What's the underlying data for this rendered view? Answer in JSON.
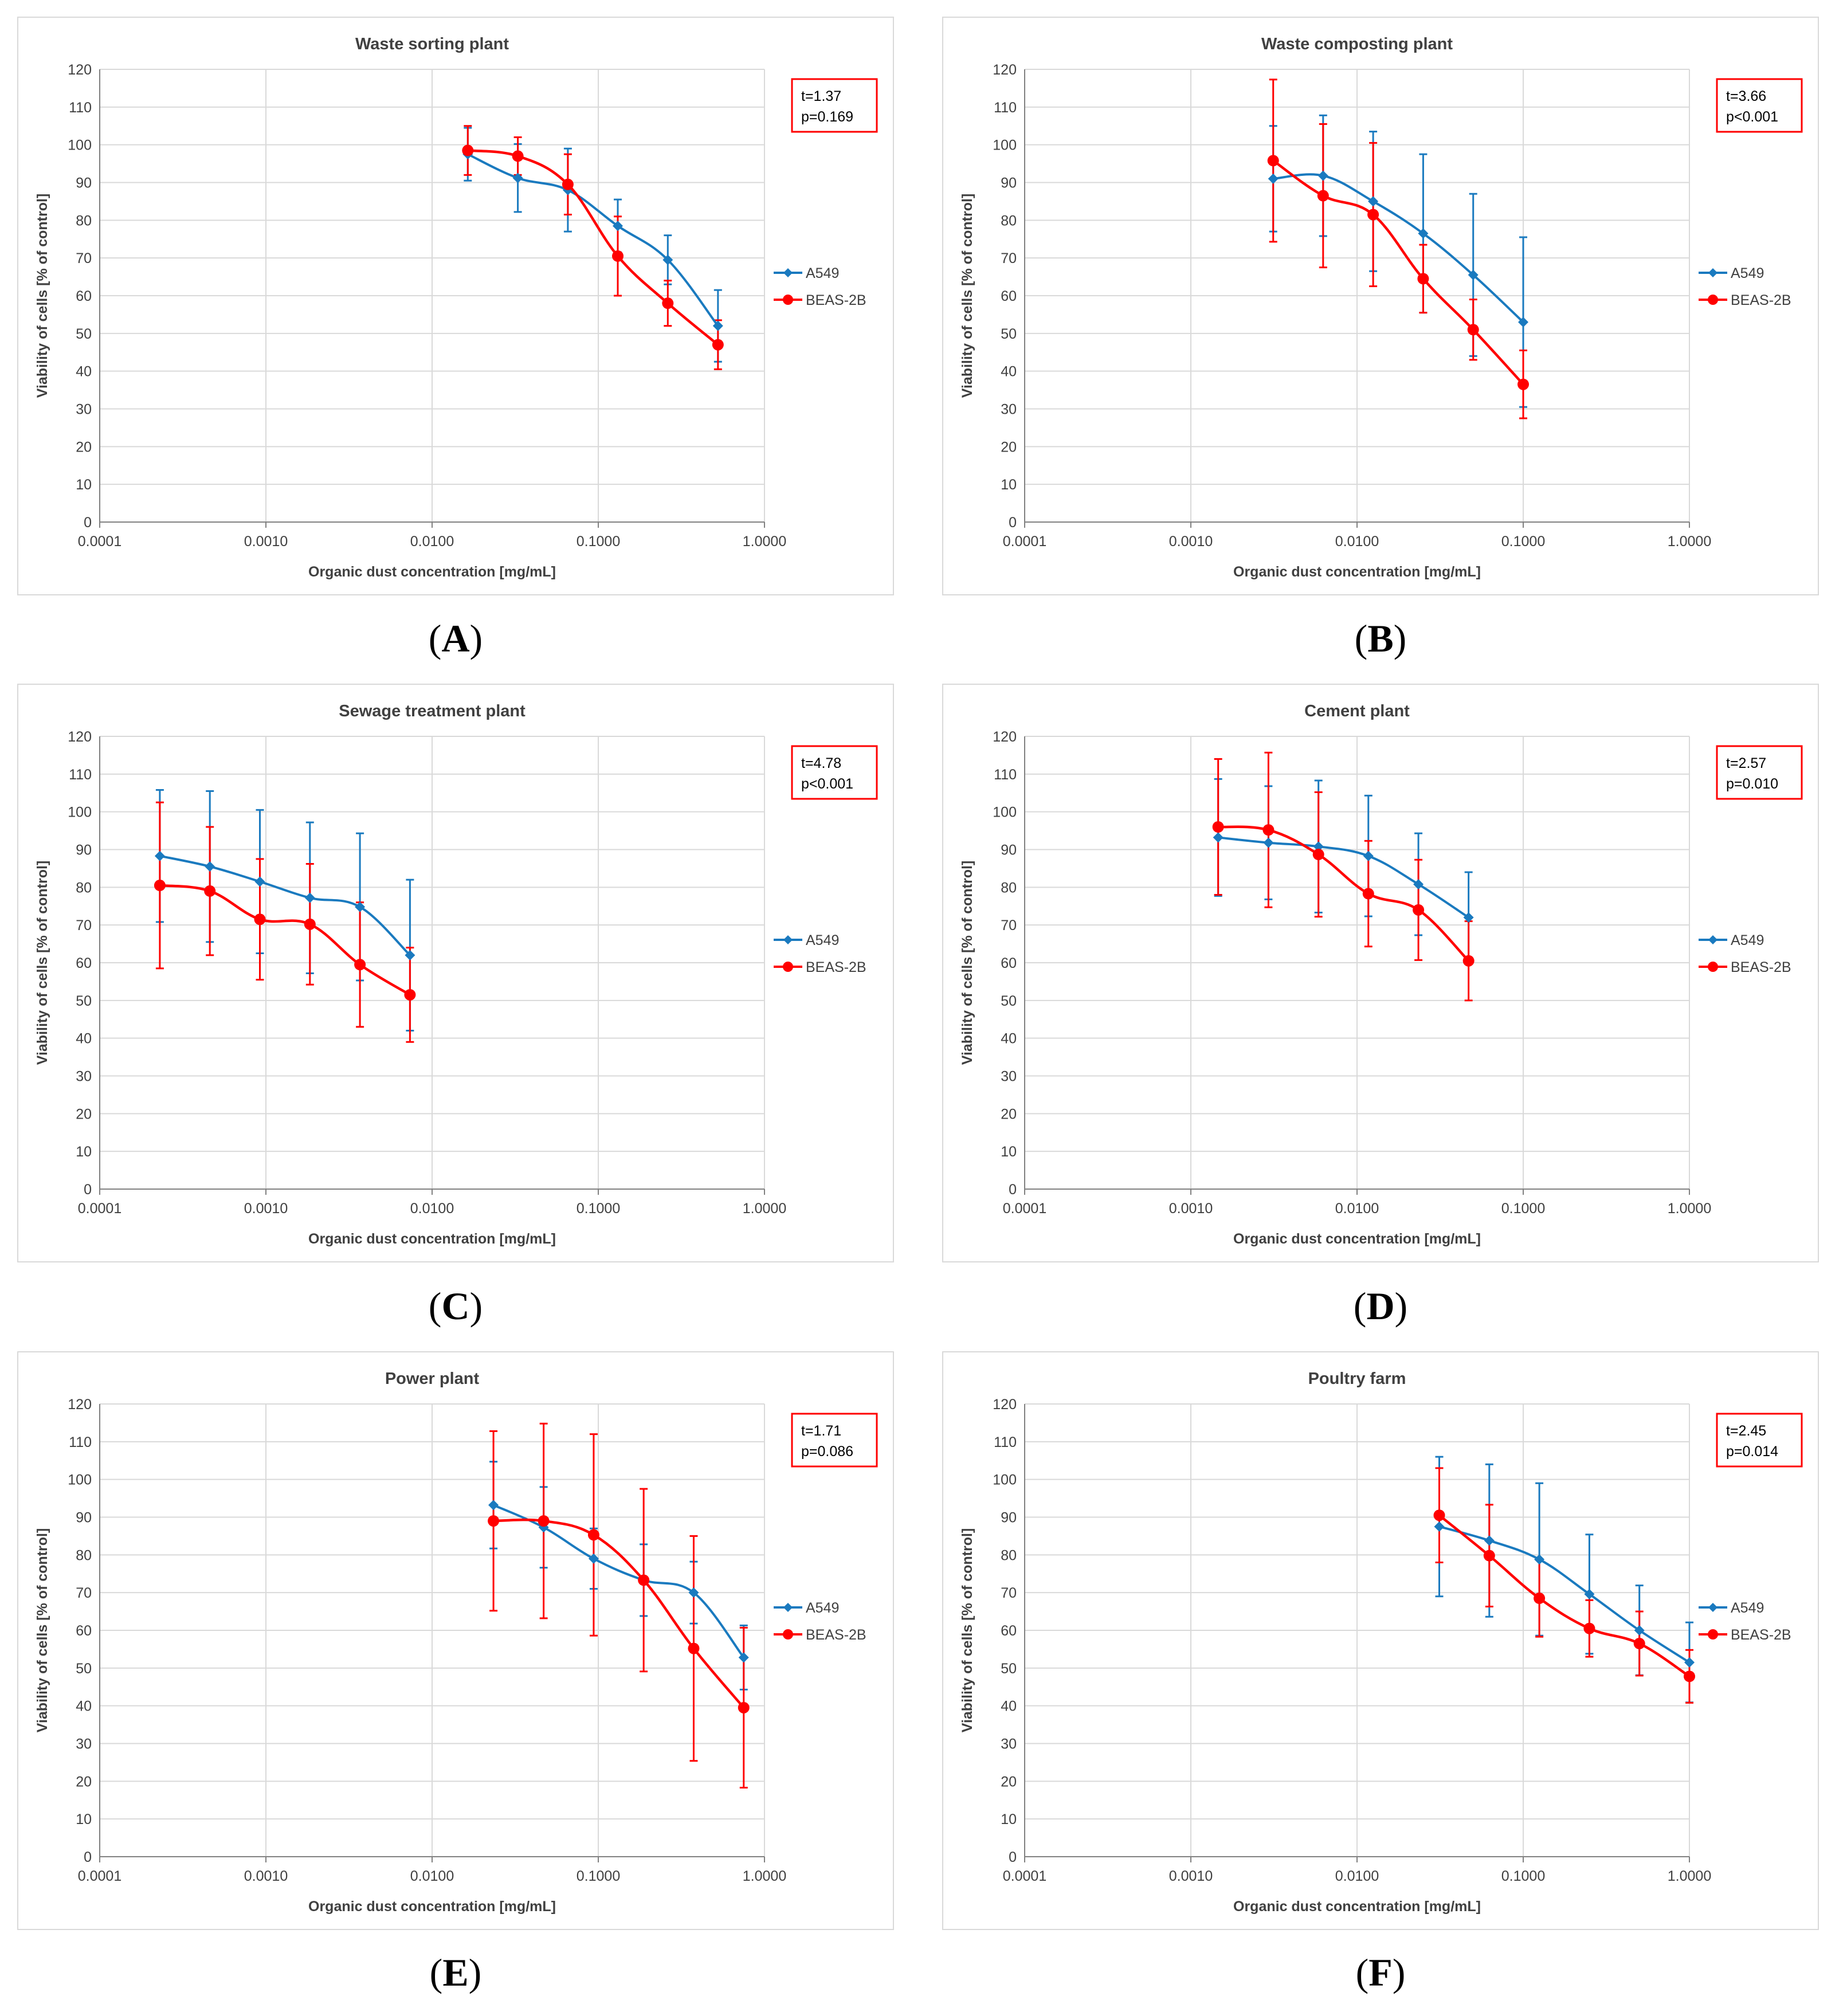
{
  "chart_data": [
    {
      "type": "line",
      "panel_label": "A",
      "title": "Waste sorting plant",
      "xlabel": "Organic dust concentration [mg/mL]",
      "ylabel": "Viability of cells [% of control]",
      "xscale": "log",
      "xlim": [
        0.0001,
        1.0
      ],
      "ylim": [
        0,
        120
      ],
      "yticks": [
        0,
        10,
        20,
        30,
        40,
        50,
        60,
        70,
        80,
        90,
        100,
        110,
        120
      ],
      "xtick_labels": [
        "0.0001",
        "0.0010",
        "0.0100",
        "0.1000",
        "1.0000"
      ],
      "annotation": {
        "t": "t=1.37",
        "p": "p=0.169"
      },
      "legend_position": "right",
      "series": [
        {
          "name": "A549",
          "color": "#1a7abf",
          "marker": "diamond",
          "x": [
            0.0164,
            0.0328,
            0.0656,
            0.131,
            0.262,
            0.525
          ],
          "y": [
            97.5,
            91.2,
            88,
            78.5,
            69.5,
            52
          ],
          "err": [
            7,
            9,
            11,
            7,
            6.5,
            9.5
          ]
        },
        {
          "name": "BEAS-2B",
          "color": "#ff0000",
          "marker": "circle",
          "x": [
            0.0164,
            0.0328,
            0.0656,
            0.131,
            0.262,
            0.525
          ],
          "y": [
            98.5,
            97,
            89.5,
            70.5,
            58,
            47
          ],
          "err": [
            6.5,
            5,
            8,
            10.5,
            6,
            6.5
          ]
        }
      ]
    },
    {
      "type": "line",
      "panel_label": "B",
      "title": "Waste composting plant",
      "xlabel": "Organic dust concentration [mg/mL]",
      "ylabel": "Viability of cells [% of control]",
      "xscale": "log",
      "xlim": [
        0.0001,
        1.0
      ],
      "ylim": [
        0,
        120
      ],
      "yticks": [
        0,
        10,
        20,
        30,
        40,
        50,
        60,
        70,
        80,
        90,
        100,
        110,
        120
      ],
      "xtick_labels": [
        "0.0001",
        "0.0010",
        "0.0100",
        "0.1000",
        "1.0000"
      ],
      "annotation": {
        "t": "t=3.66",
        "p": "p<0.001"
      },
      "legend_position": "right",
      "series": [
        {
          "name": "A549",
          "color": "#1a7abf",
          "marker": "diamond",
          "x": [
            0.00313,
            0.00625,
            0.0125,
            0.025,
            0.05,
            0.1
          ],
          "y": [
            91,
            91.8,
            85,
            76.5,
            65.5,
            53
          ],
          "err": [
            14,
            16,
            18.5,
            21,
            21.5,
            22.5
          ]
        },
        {
          "name": "BEAS-2B",
          "color": "#ff0000",
          "marker": "circle",
          "x": [
            0.00313,
            0.00625,
            0.0125,
            0.025,
            0.05,
            0.1
          ],
          "y": [
            95.8,
            86.5,
            81.5,
            64.5,
            51,
            36.5
          ],
          "err": [
            21.5,
            19,
            19,
            9,
            8,
            9
          ]
        }
      ]
    },
    {
      "type": "line",
      "panel_label": "C",
      "title": "Sewage treatment plant",
      "xlabel": "Organic dust concentration [mg/mL]",
      "ylabel": "Viability of cells [% of control]",
      "xscale": "log",
      "xlim": [
        0.0001,
        1.0
      ],
      "ylim": [
        0,
        120
      ],
      "yticks": [
        0,
        10,
        20,
        30,
        40,
        50,
        60,
        70,
        80,
        90,
        100,
        110,
        120
      ],
      "xtick_labels": [
        "0.0001",
        "0.0010",
        "0.0100",
        "0.1000",
        "1.0000"
      ],
      "annotation": {
        "t": "t=4.78",
        "p": "p<0.001"
      },
      "legend_position": "right",
      "series": [
        {
          "name": "A549",
          "color": "#1a7abf",
          "marker": "diamond",
          "x": [
            0.00023,
            0.00046,
            0.00092,
            0.00184,
            0.00368,
            0.00736
          ],
          "y": [
            88.3,
            85.5,
            81.5,
            77.2,
            74.8,
            62
          ],
          "err": [
            17.5,
            20,
            19,
            20,
            19.5,
            20
          ]
        },
        {
          "name": "BEAS-2B",
          "color": "#ff0000",
          "marker": "circle",
          "x": [
            0.00023,
            0.00046,
            0.00092,
            0.00184,
            0.00368,
            0.00736
          ],
          "y": [
            80.5,
            79,
            71.5,
            70.2,
            59.5,
            51.5
          ],
          "err": [
            22,
            17,
            16,
            16,
            16.5,
            12.5
          ]
        }
      ]
    },
    {
      "type": "line",
      "panel_label": "D",
      "title": "Cement plant",
      "xlabel": "Organic dust concentration [mg/mL]",
      "ylabel": "Viability of cells [% of control]",
      "xscale": "log",
      "xlim": [
        0.0001,
        1.0
      ],
      "ylim": [
        0,
        120
      ],
      "yticks": [
        0,
        10,
        20,
        30,
        40,
        50,
        60,
        70,
        80,
        90,
        100,
        110,
        120
      ],
      "xtick_labels": [
        "0.0001",
        "0.0010",
        "0.0100",
        "0.1000",
        "1.0000"
      ],
      "annotation": {
        "t": "t=2.57",
        "p": "p=0.010"
      },
      "legend_position": "right",
      "series": [
        {
          "name": "A549",
          "color": "#1a7abf",
          "marker": "diamond",
          "x": [
            0.00146,
            0.00293,
            0.00586,
            0.0117,
            0.0234,
            0.0469
          ],
          "y": [
            93.2,
            91.8,
            90.8,
            88.3,
            80.8,
            72
          ],
          "err": [
            15.5,
            15,
            17.5,
            16,
            13.5,
            12
          ]
        },
        {
          "name": "BEAS-2B",
          "color": "#ff0000",
          "marker": "circle",
          "x": [
            0.00146,
            0.00293,
            0.00586,
            0.0117,
            0.0234,
            0.0469
          ],
          "y": [
            96,
            95.2,
            88.7,
            78.3,
            74,
            60.5
          ],
          "err": [
            18,
            20.5,
            16.5,
            14,
            13.3,
            10.5
          ]
        }
      ]
    },
    {
      "type": "line",
      "panel_label": "E",
      "title": "Power plant",
      "xlabel": "Organic dust concentration [mg/mL]",
      "ylabel": "Viability of cells [% of control]",
      "xscale": "log",
      "xlim": [
        0.0001,
        1.0
      ],
      "ylim": [
        0,
        120
      ],
      "yticks": [
        0,
        10,
        20,
        30,
        40,
        50,
        60,
        70,
        80,
        90,
        100,
        110,
        120
      ],
      "xtick_labels": [
        "0.0001",
        "0.0010",
        "0.0100",
        "0.1000",
        "1.0000"
      ],
      "annotation": {
        "t": "t=1.71",
        "p": "p=0.086"
      },
      "legend_position": "right",
      "series": [
        {
          "name": "A549",
          "color": "#1a7abf",
          "marker": "diamond",
          "x": [
            0.0234,
            0.0469,
            0.0938,
            0.1875,
            0.375,
            0.75
          ],
          "y": [
            93.2,
            87.3,
            79,
            73.3,
            70,
            52.8
          ],
          "err": [
            11.5,
            10.7,
            8,
            9.5,
            8.2,
            8.5
          ]
        },
        {
          "name": "BEAS-2B",
          "color": "#ff0000",
          "marker": "circle",
          "x": [
            0.0234,
            0.0469,
            0.0938,
            0.1875,
            0.375,
            0.75
          ],
          "y": [
            89,
            89,
            85.3,
            73.3,
            55.2,
            39.5
          ],
          "err": [
            23.8,
            25.8,
            26.7,
            24.2,
            29.8,
            21.2
          ]
        }
      ]
    },
    {
      "type": "line",
      "panel_label": "F",
      "title": "Poultry farm",
      "xlabel": "Organic dust concentration [mg/mL]",
      "ylabel": "Viability of cells [% of control]",
      "xscale": "log",
      "xlim": [
        0.0001,
        1.0
      ],
      "ylim": [
        0,
        120
      ],
      "yticks": [
        0,
        10,
        20,
        30,
        40,
        50,
        60,
        70,
        80,
        90,
        100,
        110,
        120
      ],
      "xtick_labels": [
        "0.0001",
        "0.0010",
        "0.0100",
        "0.1000",
        "1.0000"
      ],
      "annotation": {
        "t": "t=2.45",
        "p": "p=0.014"
      },
      "legend_position": "right",
      "series": [
        {
          "name": "A549",
          "color": "#1a7abf",
          "marker": "diamond",
          "x": [
            0.03125,
            0.0625,
            0.125,
            0.25,
            0.5,
            1.0
          ],
          "y": [
            87.5,
            83.8,
            78.8,
            69.6,
            60,
            51.5
          ],
          "err": [
            18.5,
            20.2,
            20.2,
            15.8,
            11.9,
            10.6
          ]
        },
        {
          "name": "BEAS-2B",
          "color": "#ff0000",
          "marker": "circle",
          "x": [
            0.03125,
            0.0625,
            0.125,
            0.25,
            0.5,
            1.0
          ],
          "y": [
            90.5,
            79.8,
            68.5,
            60.5,
            56.5,
            47.8
          ],
          "err": [
            12.5,
            13.5,
            10.2,
            7.5,
            8.5,
            7
          ]
        }
      ]
    }
  ]
}
